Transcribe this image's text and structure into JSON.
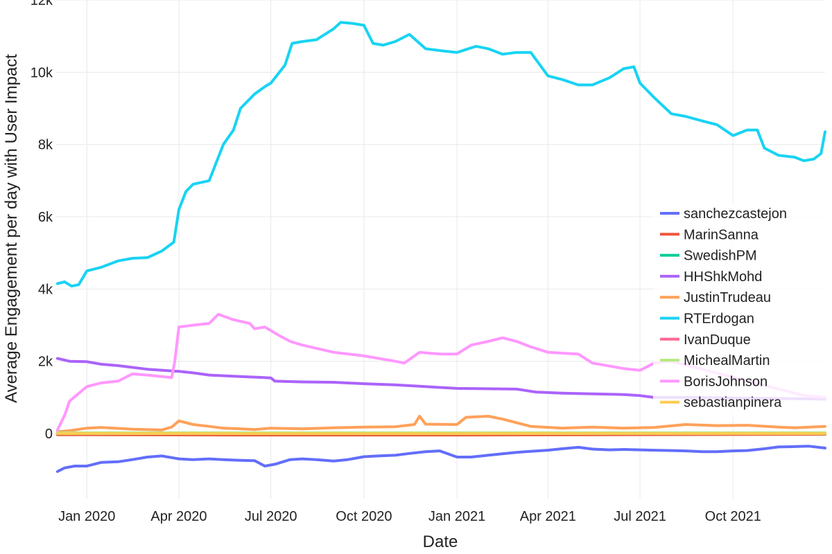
{
  "chart_data": {
    "type": "line",
    "xlabel": "Date",
    "ylabel": "Average Engagement per day with User Impact",
    "xlim": [
      "2019-12-01",
      "2021-12-31"
    ],
    "ylim": [
      -1800,
      12000
    ],
    "y_ticks": [
      0,
      2000,
      4000,
      6000,
      8000,
      10000,
      12000
    ],
    "y_tick_labels": [
      "0",
      "2k",
      "4k",
      "6k",
      "8k",
      "10k",
      "12k"
    ],
    "x_ticks": [
      "2020-01-01",
      "2020-04-01",
      "2020-07-01",
      "2020-10-01",
      "2021-01-01",
      "2021-04-01",
      "2021-07-01",
      "2021-10-01"
    ],
    "x_tick_labels": [
      "Jan 2020",
      "Apr 2020",
      "Jul 2020",
      "Oct 2020",
      "Jan 2021",
      "Apr 2021",
      "Jul 2021",
      "Oct 2021"
    ],
    "grid": true,
    "legend_position": "right",
    "series": [
      {
        "name": "sanchezcastejon",
        "color": "#636efa",
        "points": [
          [
            "2019-12-03",
            -1050
          ],
          [
            "2019-12-10",
            -950
          ],
          [
            "2019-12-20",
            -900
          ],
          [
            "2020-01-01",
            -900
          ],
          [
            "2020-01-15",
            -800
          ],
          [
            "2020-02-01",
            -780
          ],
          [
            "2020-02-15",
            -720
          ],
          [
            "2020-03-01",
            -650
          ],
          [
            "2020-03-15",
            -620
          ],
          [
            "2020-04-01",
            -700
          ],
          [
            "2020-04-15",
            -720
          ],
          [
            "2020-05-01",
            -700
          ],
          [
            "2020-05-15",
            -720
          ],
          [
            "2020-06-01",
            -740
          ],
          [
            "2020-06-15",
            -750
          ],
          [
            "2020-06-25",
            -900
          ],
          [
            "2020-07-05",
            -850
          ],
          [
            "2020-07-20",
            -720
          ],
          [
            "2020-08-01",
            -700
          ],
          [
            "2020-08-15",
            -720
          ],
          [
            "2020-09-01",
            -760
          ],
          [
            "2020-09-15",
            -720
          ],
          [
            "2020-10-01",
            -640
          ],
          [
            "2020-10-15",
            -620
          ],
          [
            "2020-11-01",
            -600
          ],
          [
            "2020-11-15",
            -550
          ],
          [
            "2020-12-01",
            -500
          ],
          [
            "2020-12-15",
            -480
          ],
          [
            "2021-01-01",
            -650
          ],
          [
            "2021-01-15",
            -650
          ],
          [
            "2021-02-01",
            -600
          ],
          [
            "2021-02-15",
            -560
          ],
          [
            "2021-03-01",
            -520
          ],
          [
            "2021-03-15",
            -490
          ],
          [
            "2021-04-01",
            -460
          ],
          [
            "2021-04-15",
            -420
          ],
          [
            "2021-05-01",
            -380
          ],
          [
            "2021-05-15",
            -430
          ],
          [
            "2021-06-01",
            -450
          ],
          [
            "2021-06-15",
            -440
          ],
          [
            "2021-07-01",
            -450
          ],
          [
            "2021-07-15",
            -460
          ],
          [
            "2021-08-01",
            -470
          ],
          [
            "2021-08-15",
            -480
          ],
          [
            "2021-09-01",
            -500
          ],
          [
            "2021-09-15",
            -500
          ],
          [
            "2021-10-01",
            -480
          ],
          [
            "2021-10-15",
            -470
          ],
          [
            "2021-11-01",
            -420
          ],
          [
            "2021-11-15",
            -370
          ],
          [
            "2021-12-01",
            -360
          ],
          [
            "2021-12-15",
            -350
          ],
          [
            "2021-12-31",
            -400
          ]
        ]
      },
      {
        "name": "MarinSanna",
        "color": "#ef553b",
        "points": [
          [
            "2019-12-03",
            -30
          ],
          [
            "2020-06-01",
            -40
          ],
          [
            "2021-01-01",
            -40
          ],
          [
            "2021-12-31",
            -20
          ]
        ]
      },
      {
        "name": "SwedishPM",
        "color": "#00cc96",
        "points": [
          [
            "2019-12-03",
            0
          ],
          [
            "2021-12-31",
            0
          ]
        ]
      },
      {
        "name": "HHShkMohd",
        "color": "#ab63fa",
        "points": [
          [
            "2019-12-03",
            2080
          ],
          [
            "2019-12-15",
            2000
          ],
          [
            "2020-01-01",
            1990
          ],
          [
            "2020-01-15",
            1920
          ],
          [
            "2020-02-01",
            1880
          ],
          [
            "2020-03-01",
            1780
          ],
          [
            "2020-04-01",
            1720
          ],
          [
            "2020-04-15",
            1680
          ],
          [
            "2020-05-01",
            1620
          ],
          [
            "2020-06-01",
            1580
          ],
          [
            "2020-07-01",
            1540
          ],
          [
            "2020-07-05",
            1450
          ],
          [
            "2020-08-01",
            1430
          ],
          [
            "2020-09-01",
            1420
          ],
          [
            "2020-10-01",
            1380
          ],
          [
            "2020-11-01",
            1350
          ],
          [
            "2020-12-01",
            1300
          ],
          [
            "2021-01-01",
            1250
          ],
          [
            "2021-02-01",
            1240
          ],
          [
            "2021-03-01",
            1230
          ],
          [
            "2021-03-20",
            1150
          ],
          [
            "2021-04-15",
            1120
          ],
          [
            "2021-05-15",
            1100
          ],
          [
            "2021-06-15",
            1080
          ],
          [
            "2021-07-01",
            1050
          ],
          [
            "2021-07-15",
            1000
          ],
          [
            "2021-08-15",
            1000
          ],
          [
            "2021-09-15",
            990
          ],
          [
            "2021-10-15",
            980
          ],
          [
            "2021-11-15",
            970
          ],
          [
            "2021-12-15",
            960
          ],
          [
            "2021-12-31",
            950
          ]
        ]
      },
      {
        "name": "JustinTrudeau",
        "color": "#ffa15a",
        "points": [
          [
            "2019-12-03",
            50
          ],
          [
            "2019-12-15",
            80
          ],
          [
            "2020-01-01",
            150
          ],
          [
            "2020-01-15",
            170
          ],
          [
            "2020-02-15",
            120
          ],
          [
            "2020-03-15",
            100
          ],
          [
            "2020-03-25",
            180
          ],
          [
            "2020-04-01",
            350
          ],
          [
            "2020-04-15",
            250
          ],
          [
            "2020-05-01",
            200
          ],
          [
            "2020-05-15",
            150
          ],
          [
            "2020-06-01",
            130
          ],
          [
            "2020-06-15",
            110
          ],
          [
            "2020-07-01",
            150
          ],
          [
            "2020-08-01",
            130
          ],
          [
            "2020-09-01",
            160
          ],
          [
            "2020-10-01",
            180
          ],
          [
            "2020-11-01",
            190
          ],
          [
            "2020-11-20",
            250
          ],
          [
            "2020-11-25",
            480
          ],
          [
            "2020-12-01",
            260
          ],
          [
            "2021-01-01",
            250
          ],
          [
            "2021-01-10",
            450
          ],
          [
            "2021-02-01",
            480
          ],
          [
            "2021-02-15",
            400
          ],
          [
            "2021-03-01",
            300
          ],
          [
            "2021-03-15",
            200
          ],
          [
            "2021-04-15",
            150
          ],
          [
            "2021-05-15",
            180
          ],
          [
            "2021-06-15",
            150
          ],
          [
            "2021-07-15",
            170
          ],
          [
            "2021-08-15",
            250
          ],
          [
            "2021-09-15",
            220
          ],
          [
            "2021-10-15",
            230
          ],
          [
            "2021-11-15",
            180
          ],
          [
            "2021-12-01",
            160
          ],
          [
            "2021-12-31",
            200
          ]
        ]
      },
      {
        "name": "RTErdogan",
        "color": "#19d3f3",
        "points": [
          [
            "2019-12-03",
            4150
          ],
          [
            "2019-12-10",
            4200
          ],
          [
            "2019-12-17",
            4080
          ],
          [
            "2019-12-24",
            4120
          ],
          [
            "2020-01-01",
            4500
          ],
          [
            "2020-01-15",
            4600
          ],
          [
            "2020-02-01",
            4780
          ],
          [
            "2020-02-15",
            4850
          ],
          [
            "2020-03-01",
            4870
          ],
          [
            "2020-03-15",
            5050
          ],
          [
            "2020-03-27",
            5300
          ],
          [
            "2020-04-01",
            6200
          ],
          [
            "2020-04-08",
            6700
          ],
          [
            "2020-04-15",
            6900
          ],
          [
            "2020-05-01",
            7000
          ],
          [
            "2020-05-15",
            8000
          ],
          [
            "2020-05-25",
            8400
          ],
          [
            "2020-06-01",
            9000
          ],
          [
            "2020-06-15",
            9400
          ],
          [
            "2020-06-25",
            9600
          ],
          [
            "2020-07-01",
            9700
          ],
          [
            "2020-07-15",
            10200
          ],
          [
            "2020-07-22",
            10800
          ],
          [
            "2020-08-01",
            10850
          ],
          [
            "2020-08-15",
            10900
          ],
          [
            "2020-09-01",
            11200
          ],
          [
            "2020-09-08",
            11380
          ],
          [
            "2020-09-20",
            11350
          ],
          [
            "2020-10-01",
            11300
          ],
          [
            "2020-10-10",
            10800
          ],
          [
            "2020-10-20",
            10750
          ],
          [
            "2020-11-01",
            10850
          ],
          [
            "2020-11-15",
            11050
          ],
          [
            "2020-12-01",
            10650
          ],
          [
            "2020-12-15",
            10600
          ],
          [
            "2021-01-01",
            10550
          ],
          [
            "2021-01-20",
            10720
          ],
          [
            "2021-02-01",
            10650
          ],
          [
            "2021-02-15",
            10500
          ],
          [
            "2021-03-01",
            10550
          ],
          [
            "2021-03-15",
            10550
          ],
          [
            "2021-04-01",
            9900
          ],
          [
            "2021-04-15",
            9800
          ],
          [
            "2021-05-01",
            9650
          ],
          [
            "2021-05-15",
            9650
          ],
          [
            "2021-06-01",
            9850
          ],
          [
            "2021-06-15",
            10100
          ],
          [
            "2021-06-25",
            10150
          ],
          [
            "2021-07-01",
            9700
          ],
          [
            "2021-07-15",
            9300
          ],
          [
            "2021-08-01",
            8850
          ],
          [
            "2021-08-15",
            8780
          ],
          [
            "2021-09-01",
            8650
          ],
          [
            "2021-09-15",
            8550
          ],
          [
            "2021-10-01",
            8250
          ],
          [
            "2021-10-15",
            8400
          ],
          [
            "2021-10-25",
            8400
          ],
          [
            "2021-11-01",
            7900
          ],
          [
            "2021-11-15",
            7700
          ],
          [
            "2021-12-01",
            7650
          ],
          [
            "2021-12-10",
            7550
          ],
          [
            "2021-12-20",
            7600
          ],
          [
            "2021-12-27",
            7750
          ],
          [
            "2021-12-31",
            8350
          ]
        ]
      },
      {
        "name": "IvanDuque",
        "color": "#ff6692",
        "points": [
          [
            "2019-12-03",
            10
          ],
          [
            "2021-12-31",
            10
          ]
        ]
      },
      {
        "name": "MichealMartin",
        "color": "#b6e880",
        "points": [
          [
            "2019-12-03",
            20
          ],
          [
            "2021-12-31",
            20
          ]
        ]
      },
      {
        "name": "BorisJohnson",
        "color": "#ff97ff",
        "points": [
          [
            "2019-12-03",
            100
          ],
          [
            "2019-12-10",
            500
          ],
          [
            "2019-12-15",
            900
          ],
          [
            "2020-01-01",
            1300
          ],
          [
            "2020-01-15",
            1400
          ],
          [
            "2020-02-01",
            1450
          ],
          [
            "2020-02-15",
            1650
          ],
          [
            "2020-03-01",
            1620
          ],
          [
            "2020-03-25",
            1550
          ],
          [
            "2020-03-28",
            2000
          ],
          [
            "2020-04-01",
            2950
          ],
          [
            "2020-04-15",
            3000
          ],
          [
            "2020-05-01",
            3050
          ],
          [
            "2020-05-10",
            3300
          ],
          [
            "2020-05-25",
            3150
          ],
          [
            "2020-06-10",
            3050
          ],
          [
            "2020-06-15",
            2900
          ],
          [
            "2020-06-25",
            2950
          ],
          [
            "2020-07-10",
            2700
          ],
          [
            "2020-07-20",
            2550
          ],
          [
            "2020-08-01",
            2450
          ],
          [
            "2020-09-01",
            2250
          ],
          [
            "2020-10-01",
            2150
          ],
          [
            "2020-11-01",
            2000
          ],
          [
            "2020-11-10",
            1950
          ],
          [
            "2020-11-25",
            2250
          ],
          [
            "2020-12-15",
            2200
          ],
          [
            "2021-01-01",
            2200
          ],
          [
            "2021-01-15",
            2450
          ],
          [
            "2021-02-01",
            2550
          ],
          [
            "2021-02-15",
            2650
          ],
          [
            "2021-03-01",
            2550
          ],
          [
            "2021-03-15",
            2400
          ],
          [
            "2021-04-01",
            2250
          ],
          [
            "2021-05-01",
            2200
          ],
          [
            "2021-05-15",
            1950
          ],
          [
            "2021-06-15",
            1800
          ],
          [
            "2021-07-01",
            1750
          ],
          [
            "2021-07-15",
            1950
          ],
          [
            "2021-08-01",
            2000
          ],
          [
            "2021-12-10",
            1050
          ],
          [
            "2021-12-31",
            1000
          ]
        ]
      },
      {
        "name": "sebastianpinera",
        "color": "#fecb52",
        "points": [
          [
            "2019-12-03",
            0
          ],
          [
            "2021-12-31",
            0
          ]
        ]
      }
    ]
  }
}
